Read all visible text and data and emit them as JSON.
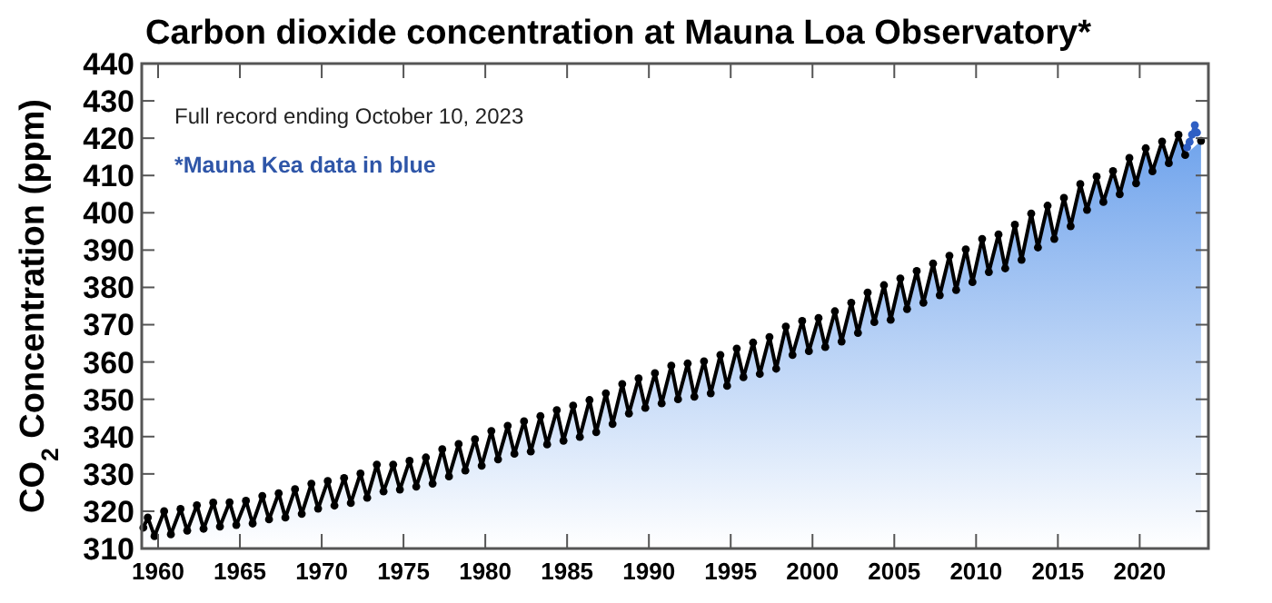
{
  "chart_data": {
    "type": "line",
    "title": "Carbon dioxide concentration at Mauna Loa Observatory*",
    "ylabel": "CO$_{2}$ Concentration (ppm)",
    "annotations": [
      "Full record ending October 10, 2023",
      "*Mauna Kea data in blue"
    ],
    "xlim": [
      1959,
      2024.2
    ],
    "xticks": [
      1960,
      1965,
      1970,
      1975,
      1980,
      1985,
      1990,
      1995,
      2000,
      2005,
      2010,
      2015,
      2020
    ],
    "ylim": [
      310,
      440
    ],
    "yticks": [
      310,
      320,
      330,
      340,
      350,
      360,
      370,
      380,
      390,
      400,
      410,
      420,
      430,
      440
    ],
    "marker": "circle",
    "grid": false,
    "series": [
      {
        "type": "area",
        "color": "#000000",
        "x": [
          1959.1,
          1959.37,
          1959.78,
          1960.37,
          1960.78,
          1961.37,
          1961.78,
          1962.37,
          1962.78,
          1963.37,
          1963.78,
          1964.37,
          1964.78,
          1965.37,
          1965.78,
          1966.37,
          1966.78,
          1967.37,
          1967.78,
          1968.37,
          1968.78,
          1969.37,
          1969.78,
          1970.37,
          1970.78,
          1971.37,
          1971.78,
          1972.37,
          1972.78,
          1973.37,
          1973.78,
          1974.37,
          1974.78,
          1975.37,
          1975.78,
          1976.37,
          1976.78,
          1977.37,
          1977.78,
          1978.37,
          1978.78,
          1979.37,
          1979.78,
          1980.37,
          1980.78,
          1981.37,
          1981.78,
          1982.37,
          1982.78,
          1983.37,
          1983.78,
          1984.37,
          1984.78,
          1985.37,
          1985.78,
          1986.37,
          1986.78,
          1987.37,
          1987.78,
          1988.37,
          1988.78,
          1989.37,
          1989.78,
          1990.37,
          1990.78,
          1991.37,
          1991.78,
          1992.37,
          1992.78,
          1993.37,
          1993.78,
          1994.37,
          1994.78,
          1995.37,
          1995.78,
          1996.37,
          1996.78,
          1997.37,
          1997.78,
          1998.37,
          1998.78,
          1999.37,
          1999.78,
          2000.37,
          2000.78,
          2001.37,
          2001.78,
          2002.37,
          2002.78,
          2003.37,
          2003.78,
          2004.37,
          2004.78,
          2005.37,
          2005.78,
          2006.37,
          2006.78,
          2007.37,
          2007.78,
          2008.37,
          2008.78,
          2009.37,
          2009.78,
          2010.37,
          2010.78,
          2011.37,
          2011.78,
          2012.37,
          2012.78,
          2013.37,
          2013.78,
          2014.37,
          2014.78,
          2015.37,
          2015.78,
          2016.37,
          2016.78,
          2017.37,
          2017.78,
          2018.37,
          2018.78,
          2019.37,
          2019.78,
          2020.37,
          2020.78,
          2021.37,
          2021.78,
          2022.37,
          2022.78,
          2023.1,
          2023.75
        ],
        "values": [
          315.6,
          318.3,
          313.3,
          320,
          313.8,
          320.6,
          314.8,
          321.6,
          315.3,
          322.3,
          315.9,
          322.4,
          316.3,
          322.8,
          316.7,
          324.1,
          317.8,
          324.8,
          318.3,
          325.9,
          319.3,
          327.4,
          320.7,
          328.1,
          321.5,
          328.9,
          322.2,
          330.1,
          323.6,
          332.5,
          325.3,
          332.5,
          325.8,
          333.5,
          326.6,
          334.4,
          327.4,
          336.6,
          329.3,
          338,
          330.9,
          339.3,
          332.2,
          341.5,
          333.9,
          342.9,
          335.4,
          344.1,
          336,
          345.5,
          337.9,
          347.1,
          338.9,
          348.3,
          339.9,
          349.8,
          341.2,
          351.6,
          343.4,
          354.1,
          346.2,
          355.6,
          347.7,
          357,
          348.9,
          359,
          350,
          359.6,
          350.7,
          360.2,
          351.6,
          361.9,
          353.6,
          363.6,
          355.9,
          365.2,
          356.8,
          366.7,
          358.2,
          369.5,
          361.9,
          371,
          362.9,
          371.8,
          364,
          373.6,
          365.5,
          375.9,
          367.8,
          378.6,
          370.7,
          380.6,
          371.3,
          382.4,
          374.2,
          384.4,
          375.9,
          386.4,
          377.9,
          388.5,
          379.3,
          390.2,
          381.4,
          393,
          384.1,
          394.2,
          385.1,
          396.8,
          387.4,
          399.8,
          390.7,
          401.9,
          393,
          404,
          396.4,
          407.7,
          400.8,
          409.7,
          402.9,
          411.2,
          405,
          414.7,
          407.9,
          417.3,
          411.1,
          419.1,
          413.3,
          420.9,
          415.5,
          null,
          419.3
        ]
      },
      {
        "color": "#2f5fc4",
        "x": [
          2022.9,
          2023.05,
          2023.2,
          2023.37,
          2023.5
        ],
        "values": [
          417.5,
          419,
          421,
          423.5,
          421.5
        ]
      }
    ]
  }
}
